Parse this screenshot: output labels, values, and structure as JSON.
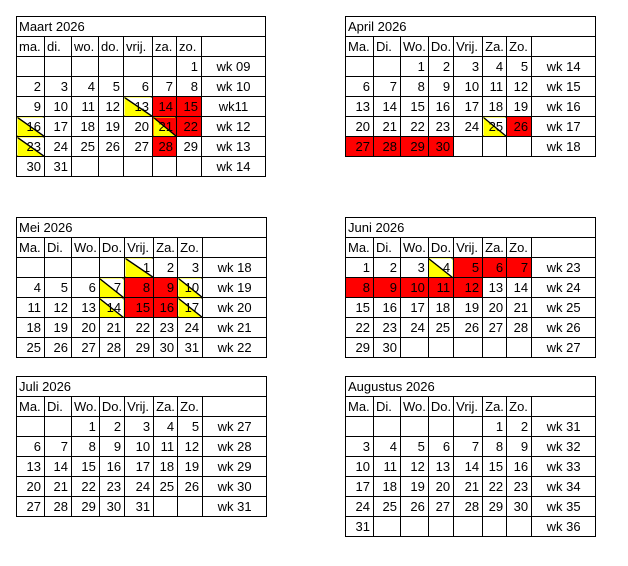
{
  "calendars": [
    {
      "title": "Maart 2026",
      "day_headers": [
        "ma.",
        "di.",
        "wo.",
        "do.",
        "vrij.",
        "za.",
        "zo."
      ],
      "weeks": [
        {
          "days": [
            "",
            "",
            "",
            "",
            "",
            "",
            "1"
          ],
          "week": "wk 09"
        },
        {
          "days": [
            "2",
            "3",
            "4",
            "5",
            "6",
            "7",
            "8"
          ],
          "week": "wk 10"
        },
        {
          "days": [
            "9",
            "10",
            "11",
            "12",
            "13",
            "14",
            "15"
          ],
          "week": "wk11",
          "marks": [
            "",
            "",
            "",
            "",
            "h",
            "r",
            "r"
          ]
        },
        {
          "days": [
            "16",
            "17",
            "18",
            "19",
            "20",
            "21",
            "22"
          ],
          "week": "wk 12",
          "marks": [
            "h",
            "",
            "",
            "",
            "",
            "hr",
            "r"
          ]
        },
        {
          "days": [
            "23",
            "24",
            "25",
            "26",
            "27",
            "28",
            "29"
          ],
          "week": "wk 13",
          "marks": [
            "h",
            "",
            "",
            "",
            "",
            "r",
            ""
          ]
        },
        {
          "days": [
            "30",
            "31",
            "",
            "",
            "",
            "",
            ""
          ],
          "week": "wk 14"
        }
      ]
    },
    {
      "title": "April 2026",
      "day_headers": [
        "Ma.",
        "Di.",
        "Wo.",
        "Do.",
        "Vrij.",
        "Za.",
        "Zo."
      ],
      "weeks": [
        {
          "days": [
            "",
            "",
            "1",
            "2",
            "3",
            "4",
            "5"
          ],
          "week": "wk 14"
        },
        {
          "days": [
            "6",
            "7",
            "8",
            "9",
            "10",
            "11",
            "12"
          ],
          "week": "wk 15"
        },
        {
          "days": [
            "13",
            "14",
            "15",
            "16",
            "17",
            "18",
            "19"
          ],
          "week": "wk 16"
        },
        {
          "days": [
            "20",
            "21",
            "22",
            "23",
            "24",
            "25",
            "26"
          ],
          "week": "wk 17",
          "marks": [
            "",
            "",
            "",
            "",
            "",
            "h",
            "r"
          ]
        },
        {
          "days": [
            "27",
            "28",
            "29",
            "30",
            "",
            "",
            ""
          ],
          "week": "wk 18",
          "marks": [
            "r",
            "r",
            "r",
            "r",
            "",
            "",
            ""
          ]
        }
      ]
    },
    {
      "title": "Mei 2026",
      "day_headers": [
        "Ma.",
        "Di.",
        "Wo.",
        "Do.",
        "Vrij.",
        "Za.",
        "Zo."
      ],
      "weeks": [
        {
          "days": [
            "",
            "",
            "",
            "",
            "1",
            "2",
            "3"
          ],
          "week": "wk 18",
          "marks": [
            "",
            "",
            "",
            "",
            "h",
            "",
            ""
          ]
        },
        {
          "days": [
            "4",
            "5",
            "6",
            "7",
            "8",
            "9",
            "10"
          ],
          "week": "wk 19",
          "marks": [
            "",
            "",
            "",
            "h",
            "r",
            "r",
            "h"
          ]
        },
        {
          "days": [
            "11",
            "12",
            "13",
            "14",
            "15",
            "16",
            "17"
          ],
          "week": "wk 20",
          "marks": [
            "",
            "",
            "",
            "h",
            "r",
            "r",
            "h"
          ]
        },
        {
          "days": [
            "18",
            "19",
            "20",
            "21",
            "22",
            "23",
            "24"
          ],
          "week": "wk 21"
        },
        {
          "days": [
            "25",
            "26",
            "27",
            "28",
            "29",
            "30",
            "31"
          ],
          "week": "wk 22"
        }
      ]
    },
    {
      "title": "Juni 2026",
      "day_headers": [
        "Ma.",
        "Di.",
        "Wo.",
        "Do.",
        "Vrij.",
        "Za.",
        "Zo."
      ],
      "weeks": [
        {
          "days": [
            "1",
            "2",
            "3",
            "4",
            "5",
            "6",
            "7"
          ],
          "week": "wk 23",
          "marks": [
            "",
            "",
            "",
            "h",
            "r",
            "r",
            "r"
          ]
        },
        {
          "days": [
            "8",
            "9",
            "10",
            "11",
            "12",
            "13",
            "14"
          ],
          "week": "wk 24",
          "marks": [
            "r",
            "r",
            "r",
            "r",
            "r",
            "",
            ""
          ]
        },
        {
          "days": [
            "15",
            "16",
            "17",
            "18",
            "19",
            "20",
            "21"
          ],
          "week": "wk 25"
        },
        {
          "days": [
            "22",
            "23",
            "24",
            "25",
            "26",
            "27",
            "28"
          ],
          "week": "wk 26"
        },
        {
          "days": [
            "29",
            "30",
            "",
            "",
            "",
            "",
            ""
          ],
          "week": "wk 27"
        }
      ]
    },
    {
      "title": "Juli 2026",
      "day_headers": [
        "Ma.",
        "Di.",
        "Wo.",
        "Do.",
        "Vrij.",
        "Za.",
        "Zo."
      ],
      "weeks": [
        {
          "days": [
            "",
            "",
            "1",
            "2",
            "3",
            "4",
            "5"
          ],
          "week": "wk 27"
        },
        {
          "days": [
            "6",
            "7",
            "8",
            "9",
            "10",
            "11",
            "12"
          ],
          "week": "wk 28"
        },
        {
          "days": [
            "13",
            "14",
            "15",
            "16",
            "17",
            "18",
            "19"
          ],
          "week": "wk 29"
        },
        {
          "days": [
            "20",
            "21",
            "22",
            "23",
            "24",
            "25",
            "26"
          ],
          "week": "wk 30"
        },
        {
          "days": [
            "27",
            "28",
            "29",
            "30",
            "31",
            "",
            ""
          ],
          "week": "wk 31"
        }
      ]
    },
    {
      "title": "Augustus 2026",
      "day_headers": [
        "Ma.",
        "Di.",
        "Wo.",
        "Do.",
        "Vrij.",
        "Za.",
        "Zo."
      ],
      "weeks": [
        {
          "days": [
            "",
            "",
            "",
            "",
            "",
            "1",
            "2"
          ],
          "week": "wk 31"
        },
        {
          "days": [
            "3",
            "4",
            "5",
            "6",
            "7",
            "8",
            "9"
          ],
          "week": "wk 32"
        },
        {
          "days": [
            "10",
            "11",
            "12",
            "13",
            "14",
            "15",
            "16"
          ],
          "week": "wk 33"
        },
        {
          "days": [
            "17",
            "18",
            "19",
            "20",
            "21",
            "22",
            "23"
          ],
          "week": "wk 34"
        },
        {
          "days": [
            "24",
            "25",
            "26",
            "27",
            "28",
            "29",
            "30"
          ],
          "week": "wk 35"
        },
        {
          "days": [
            "31",
            "",
            "",
            "",
            "",
            "",
            ""
          ],
          "week": "wk 36"
        }
      ]
    }
  ],
  "colors": {
    "holiday": "#ff0000",
    "partial": "#ffff00"
  }
}
